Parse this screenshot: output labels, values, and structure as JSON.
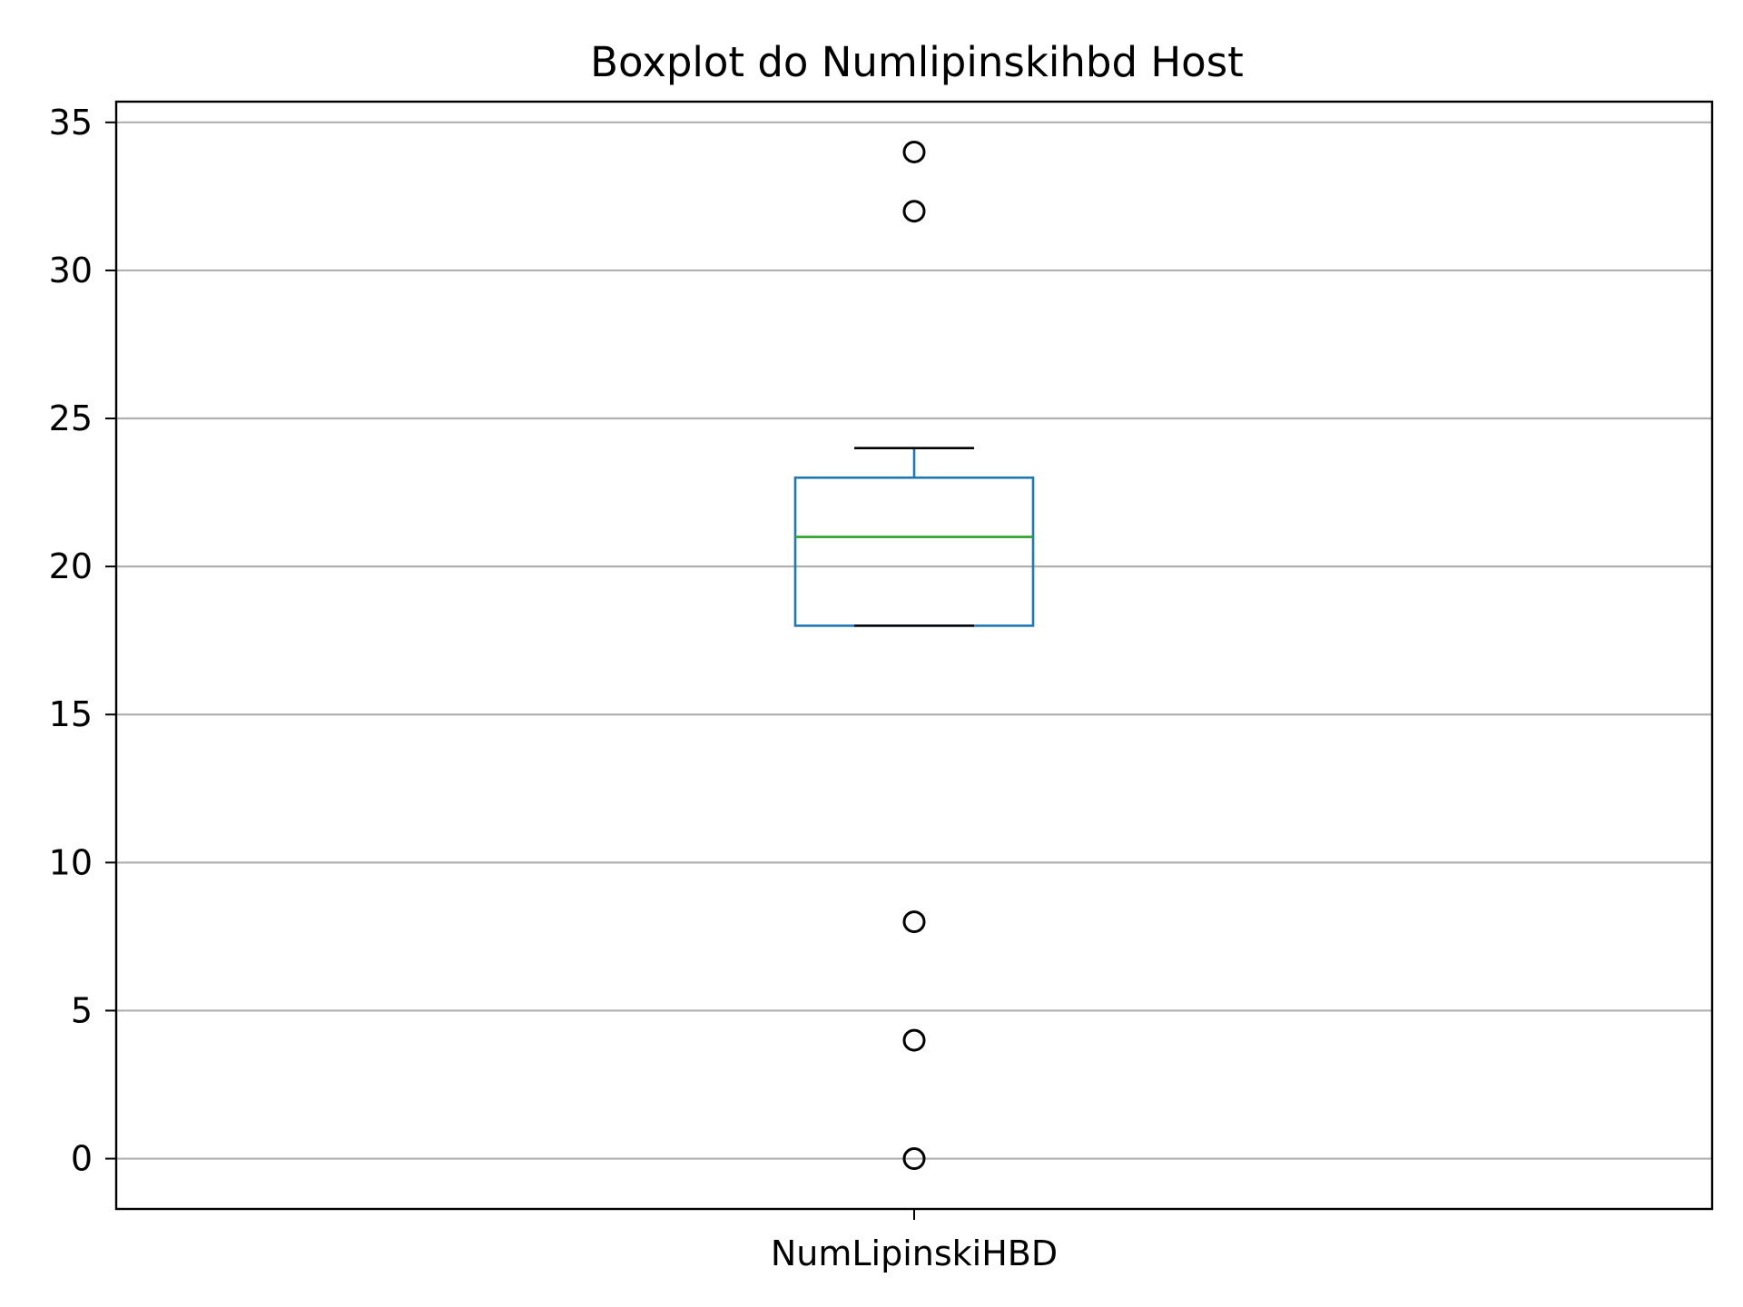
{
  "chart_data": {
    "type": "box",
    "title": "Boxplot do Numlipinskihbd Host",
    "categories": [
      "NumLipinskiHBD"
    ],
    "xlabel": "",
    "ylabel": "",
    "ylim": [
      -1.7,
      35.7
    ],
    "yticks": [
      0,
      5,
      10,
      15,
      20,
      25,
      30,
      35
    ],
    "grid": "y",
    "boxes": [
      {
        "label": "NumLipinskiHBD",
        "whisker_low": 18,
        "q1": 18,
        "median": 21,
        "q3": 23,
        "whisker_high": 24,
        "outliers": [
          34,
          32,
          8,
          4,
          0
        ]
      }
    ],
    "colors": {
      "box": "#1f77b4",
      "median": "#2ca02c",
      "whisker_cap": "#000000",
      "outlier": "#000000",
      "grid": "#b0b0b0"
    }
  }
}
